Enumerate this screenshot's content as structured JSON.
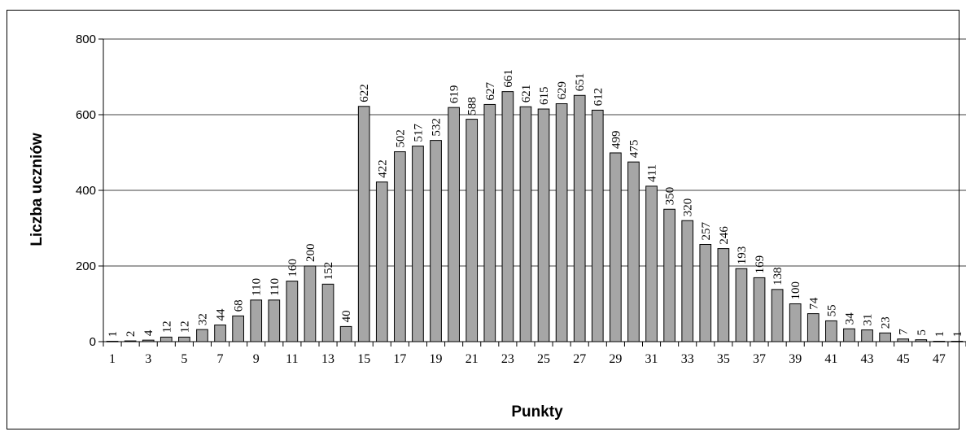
{
  "chart_data": {
    "type": "bar",
    "title": "",
    "xlabel": "Punkty",
    "ylabel": "Liczba uczniów",
    "ylim": [
      0,
      800
    ],
    "yticks": [
      "0",
      "200",
      "400",
      "600",
      "800"
    ],
    "grid": true,
    "legend": "none",
    "bar_color": "#a6a6a6",
    "categories": [
      "1",
      "2",
      "3",
      "4",
      "5",
      "6",
      "7",
      "8",
      "9",
      "10",
      "11",
      "12",
      "13",
      "14",
      "15",
      "16",
      "17",
      "18",
      "19",
      "20",
      "21",
      "22",
      "23",
      "24",
      "25",
      "26",
      "27",
      "28",
      "29",
      "30",
      "31",
      "32",
      "33",
      "34",
      "35",
      "36",
      "37",
      "38",
      "39",
      "40",
      "41",
      "42",
      "43",
      "44",
      "45",
      "46",
      "47",
      "48"
    ],
    "x_tick_labels": [
      "1",
      "3",
      "5",
      "7",
      "9",
      "11",
      "13",
      "15",
      "17",
      "19",
      "21",
      "23",
      "25",
      "27",
      "29",
      "31",
      "33",
      "35",
      "37",
      "39",
      "41",
      "43",
      "45",
      "47"
    ],
    "values": [
      1,
      2,
      4,
      12,
      12,
      32,
      44,
      68,
      110,
      110,
      160,
      200,
      152,
      40,
      622,
      422,
      502,
      517,
      532,
      619,
      588,
      627,
      661,
      621,
      615,
      629,
      651,
      612,
      499,
      475,
      411,
      350,
      320,
      257,
      246,
      193,
      169,
      138,
      100,
      74,
      55,
      34,
      31,
      23,
      7,
      5,
      1,
      1
    ]
  }
}
